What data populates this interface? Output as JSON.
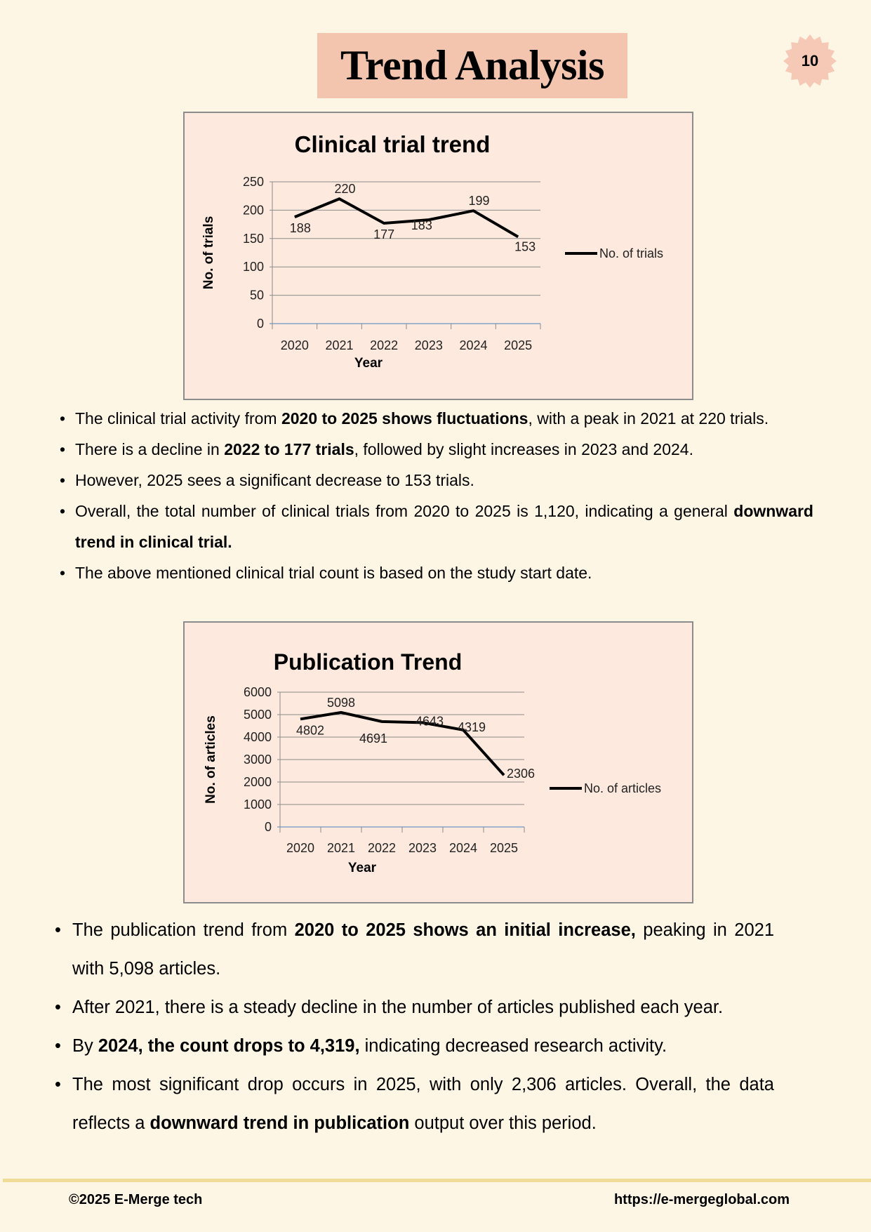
{
  "page": {
    "title": "Trend Analysis",
    "page_number": "10",
    "colors": {
      "background": "#fef6e5",
      "title_bg": "#f3c4ae",
      "chart_bg": "#fde9dd",
      "badge": "#f6c9b6",
      "footer_rule": "#f0dc96"
    }
  },
  "chart_data": [
    {
      "type": "line",
      "title": "Clinical trial trend",
      "xlabel": "Year",
      "ylabel": "No. of trials",
      "categories": [
        "2020",
        "2021",
        "2022",
        "2023",
        "2024",
        "2025"
      ],
      "series": [
        {
          "name": "No. of trials",
          "values": [
            188,
            220,
            177,
            183,
            199,
            153
          ]
        }
      ],
      "ylim": [
        0,
        250
      ],
      "yticks": [
        "0",
        "50",
        "100",
        "150",
        "200",
        "250"
      ],
      "grid": true,
      "legend": "right",
      "data_labels": true
    },
    {
      "type": "line",
      "title": "Publication Trend",
      "xlabel": "Year",
      "ylabel": "No. of articles",
      "categories": [
        "2020",
        "2021",
        "2022",
        "2023",
        "2024",
        "2025"
      ],
      "series": [
        {
          "name": "No. of articles",
          "values": [
            4802,
            5098,
            4691,
            4643,
            4319,
            2306
          ]
        }
      ],
      "ylim": [
        0,
        6000
      ],
      "yticks": [
        "0",
        "1000",
        "2000",
        "3000",
        "4000",
        "5000",
        "6000"
      ],
      "grid": true,
      "legend": "right",
      "data_labels": true
    }
  ],
  "bullets_clinical": [
    [
      {
        "t": "The clinical trial activity from "
      },
      {
        "t": "2020 to 2025 shows fluctuations",
        "b": true
      },
      {
        "t": ", with a peak in 2021 at 220 trials."
      }
    ],
    [
      {
        "t": "There is a decline in "
      },
      {
        "t": "2022 to 177 trials",
        "b": true
      },
      {
        "t": ", followed by slight increases in 2023 and 2024."
      }
    ],
    [
      {
        "t": "However, 2025 sees a significant decrease to 153 trials."
      }
    ],
    [
      {
        "t": "Overall, the total number of clinical trials from 2020 to 2025 is 1,120, indicating a general "
      },
      {
        "t": "downward trend in clinical trial.",
        "b": true
      }
    ],
    [
      {
        "t": "The above mentioned clinical trial count is based on the study start date."
      }
    ]
  ],
  "bullets_publication": [
    [
      {
        "t": "The publication trend from "
      },
      {
        "t": "2020 to 2025 shows an initial increase,",
        "b": true
      },
      {
        "t": " peaking in 2021 with 5,098 articles."
      }
    ],
    [
      {
        "t": "After 2021, there is a steady decline in the number of articles published each year."
      }
    ],
    [
      {
        "t": "By "
      },
      {
        "t": "2024, the count drops to 4,319,",
        "b": true
      },
      {
        "t": " indicating decreased research activity."
      }
    ],
    [
      {
        "t": "The most significant drop occurs in 2025, with only 2,306 articles. Overall, the data reflects a "
      },
      {
        "t": "downward trend in publication",
        "b": true
      },
      {
        "t": " output over this period."
      }
    ]
  ],
  "footer": {
    "copyright": "©2025 E-Merge tech",
    "url": "https://e-mergeglobal.com"
  }
}
